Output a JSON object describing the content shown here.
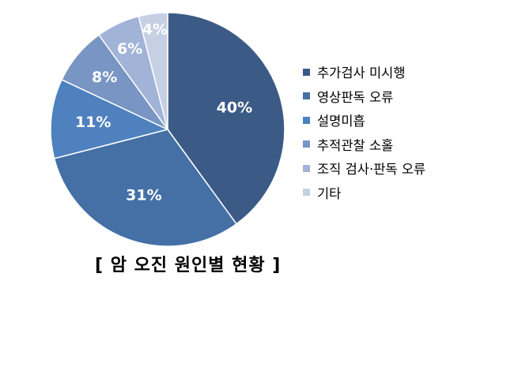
{
  "chart_data": {
    "type": "pie",
    "title": "[ 암 오진 원인별 현황 ]",
    "categories": [
      "추가검사 미시행",
      "영상판독 오류",
      "설명미흡",
      "추적관찰 소홀",
      "조직 검사·판독 오류",
      "기타"
    ],
    "values": [
      40,
      31,
      11,
      8,
      6,
      4
    ],
    "labels": [
      "40%",
      "31%",
      "11%",
      "8%",
      "6%",
      "4%"
    ],
    "colors": [
      "#3b5a85",
      "#4470a6",
      "#4e81bd",
      "#7895c3",
      "#a1b4d7",
      "#c6d0e5"
    ],
    "legend": "right",
    "start": "12 o'clock, clockwise"
  }
}
